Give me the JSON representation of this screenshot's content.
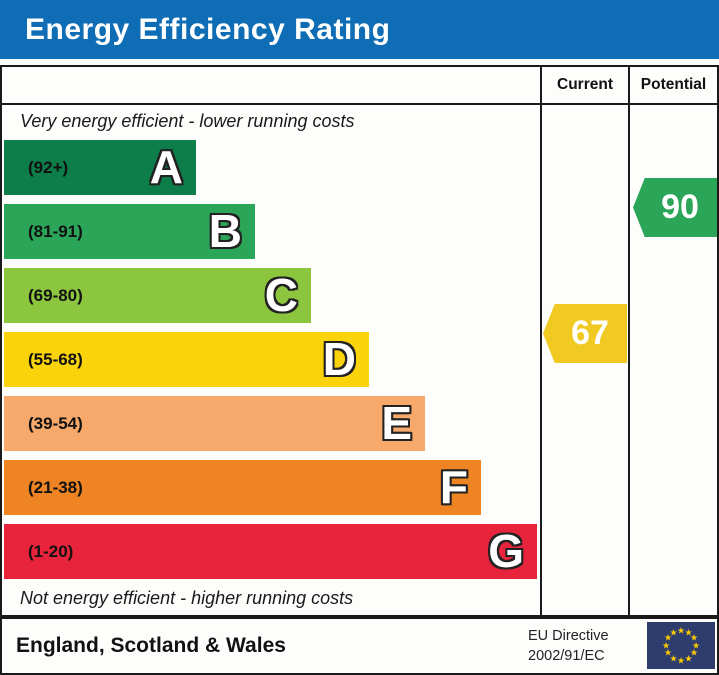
{
  "title": "Energy Efficiency Rating",
  "header": {
    "current_label": "Current",
    "potential_label": "Potential"
  },
  "notes": {
    "top": "Very energy efficient - lower running costs",
    "bottom": "Not energy efficient - higher running costs"
  },
  "bands": [
    {
      "letter": "A",
      "range": "(92+)",
      "color": "#0d7d4a"
    },
    {
      "letter": "B",
      "range": "(81-91)",
      "color": "#2ba558"
    },
    {
      "letter": "C",
      "range": "(69-80)",
      "color": "#8cc63f"
    },
    {
      "letter": "D",
      "range": "(55-68)",
      "color": "#fbd30a"
    },
    {
      "letter": "E",
      "range": "(39-54)",
      "color": "#f6a96b"
    },
    {
      "letter": "F",
      "range": "(21-38)",
      "color": "#ee8424"
    },
    {
      "letter": "G",
      "range": "(1-20)",
      "color": "#e8243c"
    }
  ],
  "markers": {
    "current": {
      "value": "67",
      "color": "#f0c922"
    },
    "potential": {
      "value": "90",
      "color": "#2ba558"
    }
  },
  "footer": {
    "region": "England, Scotland & Wales",
    "directive_line1": "EU Directive",
    "directive_line2": "2002/91/EC"
  },
  "colors": {
    "title_bg": "#0e6db4",
    "title_text": "#ffffff",
    "eu_flag_bg": "#2e3d6e",
    "eu_star": "#ffcc00"
  },
  "chart_data": {
    "type": "bar",
    "title": "Energy Efficiency Rating",
    "categories": [
      "A",
      "B",
      "C",
      "D",
      "E",
      "F",
      "G"
    ],
    "band_ranges": [
      "92+",
      "81-91",
      "69-80",
      "55-68",
      "39-54",
      "21-38",
      "1-20"
    ],
    "band_colors": [
      "#0d7d4a",
      "#2ba558",
      "#8cc63f",
      "#fbd30a",
      "#f6a96b",
      "#ee8424",
      "#e8243c"
    ],
    "bar_relative_widths": [
      0.36,
      0.47,
      0.57,
      0.68,
      0.78,
      0.89,
      0.99
    ],
    "current_rating": 67,
    "current_band": "D",
    "potential_rating": 90,
    "potential_band": "B",
    "value_scale": [
      1,
      100
    ],
    "columns": [
      "Current",
      "Potential"
    ],
    "annotations": [
      "Very energy efficient - lower running costs",
      "Not energy efficient - higher running costs"
    ],
    "footer": "England, Scotland & Wales — EU Directive 2002/91/EC"
  }
}
